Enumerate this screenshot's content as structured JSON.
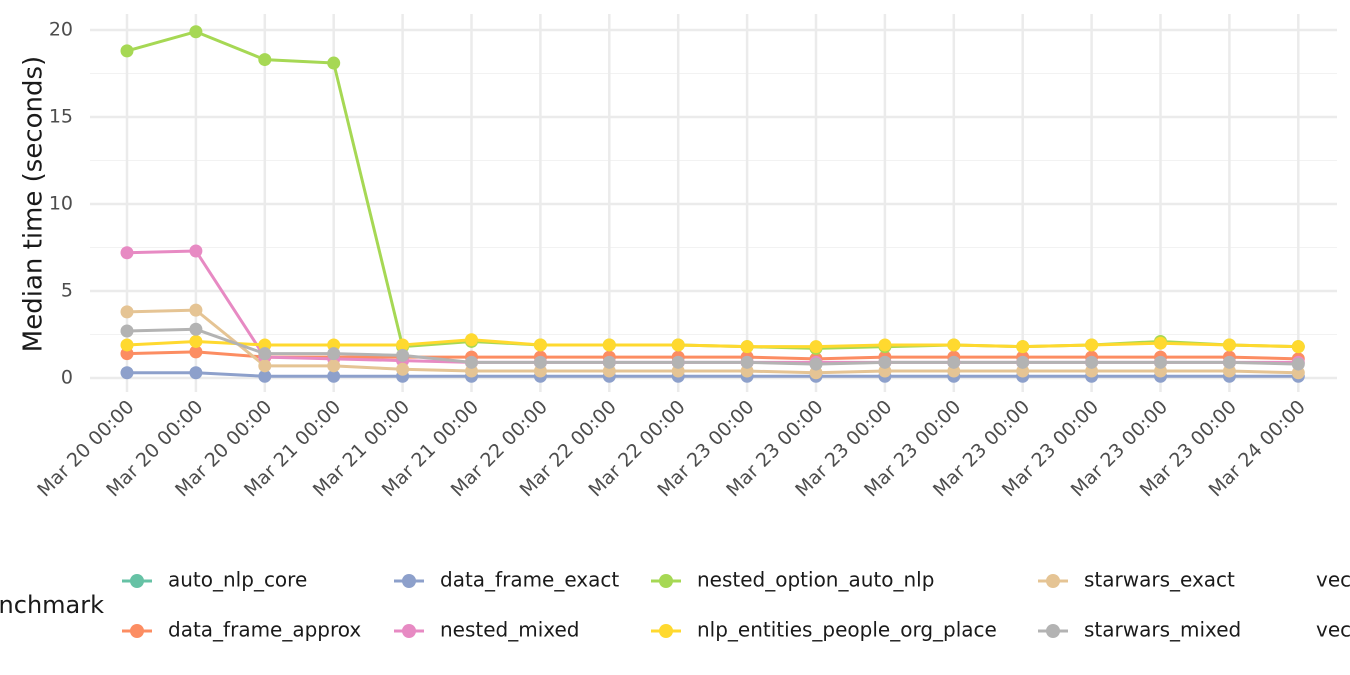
{
  "chart_data": {
    "type": "line",
    "ylabel": "Median time (seconds)",
    "xlabel": "",
    "ylim": [
      0,
      20
    ],
    "y_ticks": [
      0,
      5,
      10,
      15,
      20
    ],
    "grid": true,
    "legend_position": "bottom",
    "legend_title": "benchmark",
    "x": [
      "Mar 20 00:00",
      "Mar 20 00:00",
      "Mar 20 00:00",
      "Mar 21 00:00",
      "Mar 21 00:00",
      "Mar 21 00:00",
      "Mar 22 00:00",
      "Mar 22 00:00",
      "Mar 22 00:00",
      "Mar 23 00:00",
      "Mar 23 00:00",
      "Mar 23 00:00",
      "Mar 23 00:00",
      "Mar 23 00:00",
      "Mar 23 00:00",
      "Mar 23 00:00",
      "Mar 23 00:00",
      "Mar 24 00:00"
    ],
    "series": [
      {
        "name": "auto_nlp_core",
        "color": "#66c2a5",
        "values": [
          null,
          null,
          null,
          null,
          null,
          null,
          null,
          null,
          null,
          null,
          null,
          null,
          null,
          null,
          null,
          null,
          null,
          null
        ]
      },
      {
        "name": "data_frame_approx",
        "color": "#fc8d62",
        "values": [
          1.4,
          1.5,
          1.2,
          1.2,
          1.2,
          1.2,
          1.2,
          1.2,
          1.2,
          1.2,
          1.1,
          1.2,
          1.2,
          1.2,
          1.2,
          1.2,
          1.2,
          1.1
        ]
      },
      {
        "name": "data_frame_exact",
        "color": "#8da0cb",
        "values": [
          0.3,
          0.3,
          0.1,
          0.1,
          0.1,
          0.1,
          0.1,
          0.1,
          0.1,
          0.1,
          0.1,
          0.1,
          0.1,
          0.1,
          0.1,
          0.1,
          0.1,
          0.1
        ]
      },
      {
        "name": "nested_mixed",
        "color": "#e78ac3",
        "values": [
          7.2,
          7.3,
          1.2,
          1.1,
          1.0,
          0.9,
          0.9,
          0.9,
          0.9,
          0.9,
          0.9,
          0.9,
          0.9,
          0.9,
          0.9,
          0.9,
          0.9,
          0.9
        ]
      },
      {
        "name": "nested_option_auto_nlp",
        "color": "#a6d854",
        "values": [
          18.8,
          19.9,
          18.3,
          18.1,
          1.8,
          2.1,
          1.9,
          1.9,
          1.9,
          1.8,
          1.7,
          1.8,
          1.9,
          1.8,
          1.9,
          2.1,
          1.9,
          1.8
        ]
      },
      {
        "name": "nlp_entities_people_org_place",
        "color": "#ffd92f",
        "values": [
          1.9,
          2.1,
          1.9,
          1.9,
          1.9,
          2.2,
          1.9,
          1.9,
          1.9,
          1.8,
          1.8,
          1.9,
          1.9,
          1.8,
          1.9,
          2.0,
          1.9,
          1.8
        ]
      },
      {
        "name": "starwars_exact",
        "color": "#e5c494",
        "values": [
          3.8,
          3.9,
          0.7,
          0.7,
          0.5,
          0.4,
          0.4,
          0.4,
          0.4,
          0.4,
          0.3,
          0.4,
          0.4,
          0.4,
          0.4,
          0.4,
          0.4,
          0.3
        ]
      },
      {
        "name": "starwars_mixed",
        "color": "#b3b3b3",
        "values": [
          2.7,
          2.8,
          1.4,
          1.4,
          1.3,
          0.9,
          0.9,
          0.9,
          0.9,
          0.9,
          0.8,
          0.9,
          0.9,
          0.9,
          0.9,
          0.9,
          0.9,
          0.8
        ]
      }
    ],
    "legend_extra": [
      "vec",
      "vec"
    ]
  }
}
